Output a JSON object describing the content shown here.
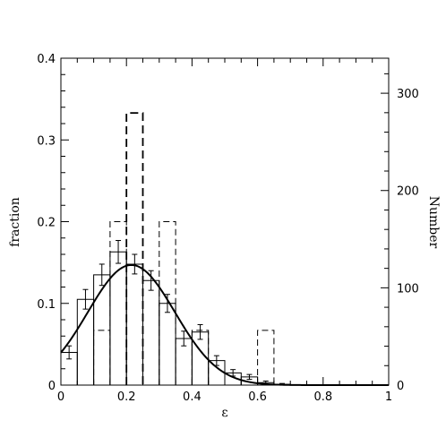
{
  "chart_data": {
    "type": "bar",
    "title": "",
    "xlabel": "ε",
    "ylabel": "fraction",
    "y2label": "Number",
    "xlim": [
      0,
      1
    ],
    "ylim": [
      0,
      0.4
    ],
    "y2lim": [
      0,
      336
    ],
    "grid": false,
    "legend": "none",
    "x_ticks": [
      "0",
      "0.2",
      "0.4",
      "0.6",
      "0.8",
      "1"
    ],
    "y_ticks": [
      "0",
      "0.1",
      "0.2",
      "0.3",
      "0.4"
    ],
    "y2_ticks": [
      "0",
      "100",
      "200",
      "300"
    ],
    "bin_edges": [
      0,
      0.05,
      0.1,
      0.15,
      0.2,
      0.25,
      0.3,
      0.35,
      0.4,
      0.45,
      0.5,
      0.55,
      0.6,
      0.65,
      0.7,
      0.75,
      0.8,
      0.85,
      0.9,
      0.95,
      1.0
    ],
    "series": [
      {
        "style": "solid-histogram-with-errorbars",
        "axis": "left",
        "values": [
          0.04,
          0.105,
          0.135,
          0.163,
          0.148,
          0.128,
          0.1,
          0.057,
          0.065,
          0.03,
          0.015,
          0.01,
          0.003,
          0.001,
          0,
          0,
          0,
          0,
          0,
          0
        ],
        "errors": [
          0.008,
          0.012,
          0.013,
          0.014,
          0.012,
          0.012,
          0.011,
          0.009,
          0.009,
          0.006,
          0.004,
          0.003,
          0.002,
          0.001,
          0,
          0,
          0,
          0,
          0,
          0
        ]
      },
      {
        "style": "thin-dashed-histogram",
        "axis": "left",
        "values": [
          0.0,
          0.0,
          0.067,
          0.2,
          0.0,
          0.0,
          0.2,
          0.0,
          0.067,
          0.0,
          0.0,
          0.0,
          0.067,
          0.0,
          0,
          0,
          0,
          0,
          0,
          0
        ]
      },
      {
        "style": "thick-dashed-histogram",
        "axis": "left",
        "values": [
          0,
          0,
          0,
          0,
          0.333,
          0,
          0,
          0,
          0,
          0,
          0,
          0,
          0,
          0,
          0,
          0,
          0,
          0,
          0,
          0
        ]
      },
      {
        "style": "fit-curve",
        "axis": "left",
        "model": "gaussian",
        "amplitude": 0.147,
        "mean": 0.215,
        "sigma": 0.133
      }
    ]
  }
}
